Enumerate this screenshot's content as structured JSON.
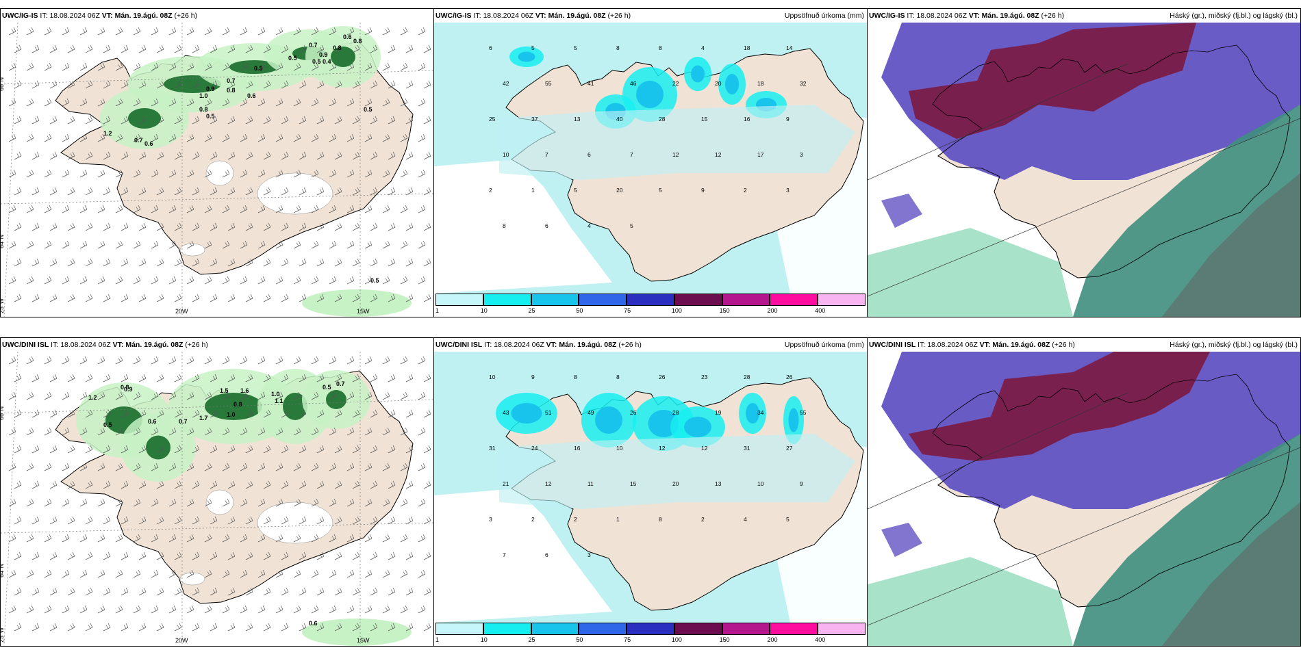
{
  "header": {
    "it_label": "IT:",
    "it_value": "18.08.2024 06Z",
    "vt_label": "VT:",
    "vt_value": "Mán. 19.ágú. 08Z",
    "lead": "(+26 h)",
    "models": {
      "top": "UWC/IG-IS",
      "bottom": "UWC/DINI ISL"
    },
    "precip_title": "Uppsöfnuð úrkoma (mm)",
    "cloud_title": "Háský (gr.), miðský (fj.bl.) og lágský (bl.)"
  },
  "axis_labels": {
    "lat_66": "66°N",
    "lat_64": "64°N",
    "lon_25": "25°W",
    "lon_20": "20W",
    "lon_15": "15W",
    "lat_65": "65°N"
  },
  "colorbar": {
    "labels": [
      "1",
      "10",
      "25",
      "50",
      "75",
      "100",
      "150",
      "200",
      "400"
    ],
    "colors": [
      "#c6f6fa",
      "#17eef0",
      "#19c4ec",
      "#2f67e8",
      "#2a2fbf",
      "#6b0d4e",
      "#b3168d",
      "#ff0d9e",
      "#f8b4f0"
    ]
  },
  "colors": {
    "land": "#f0e3d6",
    "light_precip": "#bff0f2",
    "green_light": "#c7f2c5",
    "green_dark": "#176b2a",
    "purple": "#6153c3",
    "maroon": "#7a1c48",
    "teal": "#3f8e7e"
  },
  "precip_values_top": [
    "6",
    "5",
    "5",
    "8",
    "8",
    "4",
    "18",
    "14",
    "42",
    "55",
    "41",
    "46",
    "22",
    "20",
    "18",
    "32",
    "25",
    "37",
    "13",
    "40",
    "28",
    "15",
    "16",
    "9",
    "10",
    "7",
    "6",
    "7",
    "12",
    "12",
    "17",
    "3",
    "2",
    "1",
    "5",
    "20",
    "5",
    "9",
    "2",
    "3",
    "8",
    "6",
    "4",
    "5"
  ],
  "precip_values_bottom": [
    "10",
    "9",
    "8",
    "8",
    "26",
    "23",
    "28",
    "26",
    "43",
    "51",
    "49",
    "26",
    "28",
    "19",
    "34",
    "55",
    "31",
    "24",
    "16",
    "10",
    "12",
    "12",
    "31",
    "27",
    "21",
    "12",
    "11",
    "15",
    "20",
    "13",
    "10",
    "9",
    "3",
    "2",
    "2",
    "1",
    "8",
    "2",
    "4",
    "5",
    "7",
    "6",
    "3"
  ],
  "wind_values_top": [
    "0.6",
    "0.8",
    "0.7",
    "0.9",
    "0.8",
    "0.8",
    "0.5",
    "0.4",
    "0.9",
    "0.7",
    "1.0",
    "0.5",
    "0.6",
    "0.5",
    "0.8",
    "0.5",
    "1.2",
    "0.6",
    "0.7",
    "0.5",
    "0.5"
  ],
  "wind_values_bottom": [
    "0.8",
    "0.9",
    "1.2",
    "0.5",
    "0.6",
    "0.7",
    "1.5",
    "1.6",
    "0.5",
    "1.0",
    "1.7",
    "1.1",
    "0.8",
    "1.0",
    "0.7",
    "0.6"
  ]
}
